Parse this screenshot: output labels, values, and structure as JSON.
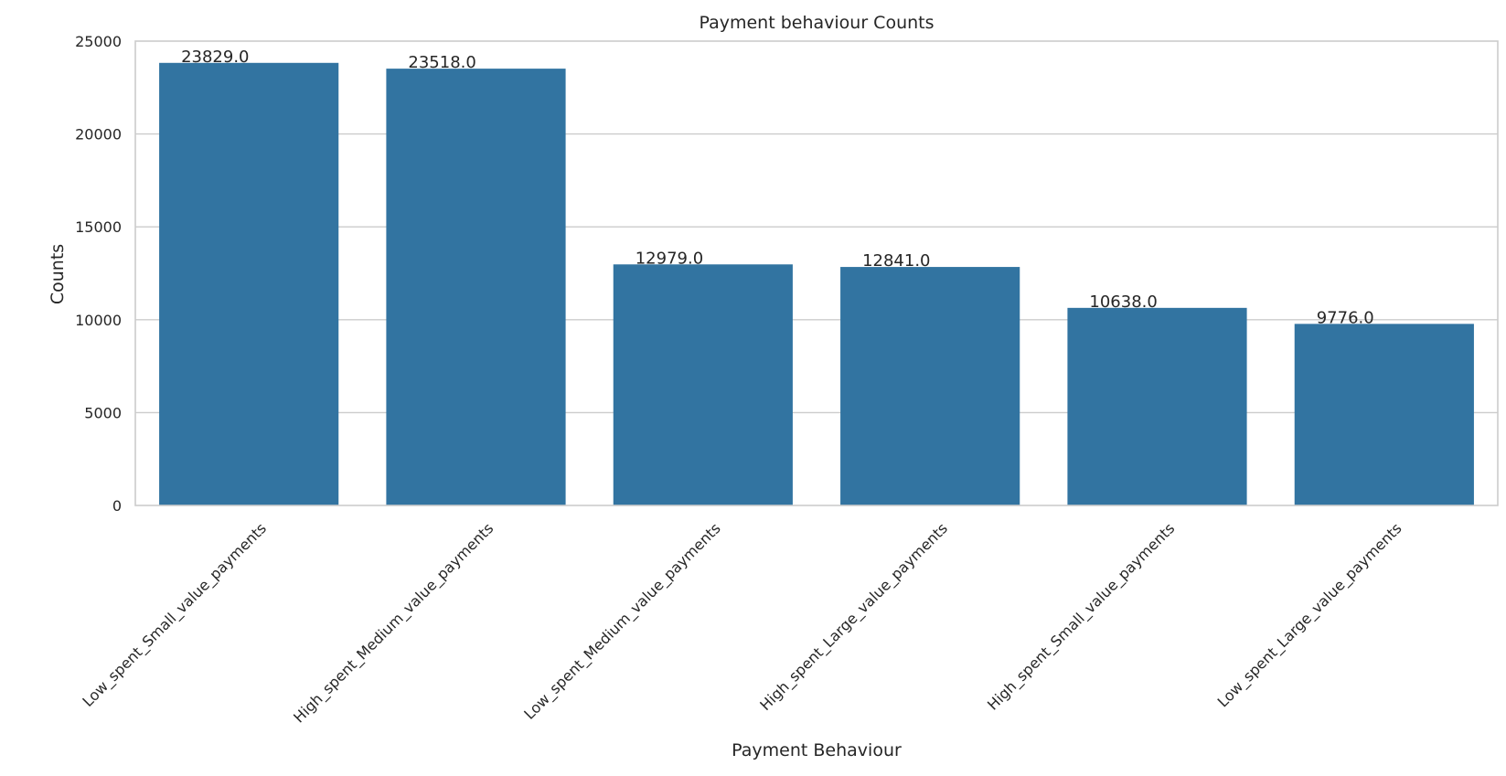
{
  "chart_data": {
    "type": "bar",
    "title": "Payment behaviour Counts",
    "xlabel": "Payment Behaviour",
    "ylabel": "Counts",
    "categories": [
      "Low_spent_Small_value_payments",
      "High_spent_Medium_value_payments",
      "Low_spent_Medium_value_payments",
      "High_spent_Large_value_payments",
      "High_spent_Small_value_payments",
      "Low_spent_Large_value_payments"
    ],
    "values": [
      23829,
      23518,
      12979,
      12841,
      10638,
      9776
    ],
    "value_labels": [
      "23829.0",
      "23518.0",
      "12979.0",
      "12841.0",
      "10638.0",
      "9776.0"
    ],
    "ylim": [
      0,
      25000
    ],
    "yticks": [
      0,
      5000,
      10000,
      15000,
      20000,
      25000
    ],
    "grid": true,
    "bar_color": "#3274a1",
    "grid_color": "#cccccc"
  }
}
